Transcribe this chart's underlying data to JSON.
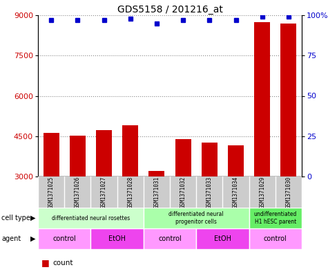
{
  "title": "GDS5158 / 201216_at",
  "samples": [
    "GSM1371025",
    "GSM1371026",
    "GSM1371027",
    "GSM1371028",
    "GSM1371031",
    "GSM1371032",
    "GSM1371033",
    "GSM1371034",
    "GSM1371029",
    "GSM1371030"
  ],
  "counts": [
    4620,
    4530,
    4720,
    4900,
    3200,
    4380,
    4250,
    4150,
    8750,
    8700
  ],
  "percentiles": [
    97,
    97,
    97,
    98,
    95,
    97,
    97,
    97,
    99,
    99
  ],
  "ylim_left": [
    3000,
    9000
  ],
  "ylim_right": [
    0,
    100
  ],
  "yticks_left": [
    3000,
    4500,
    6000,
    7500,
    9000
  ],
  "yticks_right": [
    0,
    25,
    50,
    75,
    100
  ],
  "bar_color": "#cc0000",
  "dot_color": "#0000cc",
  "cell_type_groups": [
    {
      "label": "differentiated neural rosettes",
      "start": 0,
      "end": 4,
      "color": "#ccffcc"
    },
    {
      "label": "differentiated neural\nprogenitor cells",
      "start": 4,
      "end": 8,
      "color": "#aaffaa"
    },
    {
      "label": "undifferentiated\nH1 hESC parent",
      "start": 8,
      "end": 10,
      "color": "#66ee66"
    }
  ],
  "agent_groups": [
    {
      "label": "control",
      "start": 0,
      "end": 2,
      "color": "#ff99ff"
    },
    {
      "label": "EtOH",
      "start": 2,
      "end": 4,
      "color": "#ee44ee"
    },
    {
      "label": "control",
      "start": 4,
      "end": 6,
      "color": "#ff99ff"
    },
    {
      "label": "EtOH",
      "start": 6,
      "end": 8,
      "color": "#ee44ee"
    },
    {
      "label": "control",
      "start": 8,
      "end": 10,
      "color": "#ff99ff"
    }
  ],
  "left_label_color": "#cc0000",
  "right_label_color": "#0000cc",
  "sample_bg_color": "#cccccc",
  "plot_bg_color": "#ffffff"
}
